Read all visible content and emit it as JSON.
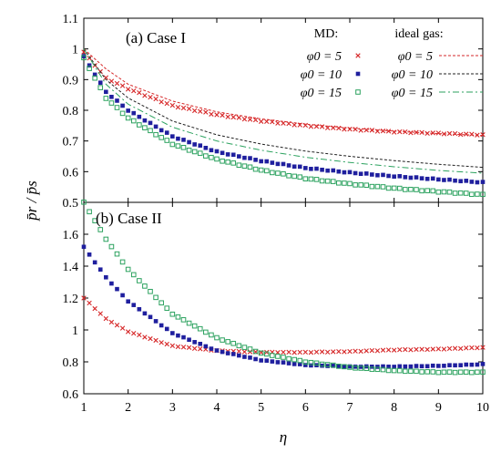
{
  "chart_data": [
    {
      "type": "scatter",
      "panel_title": "(a) Case I",
      "xlabel": "η",
      "ylabel": "p̄r / p̄s",
      "xlim": [
        1,
        10
      ],
      "ylim": [
        0.5,
        1.1
      ],
      "x_ticks": [
        1,
        2,
        3,
        4,
        5,
        6,
        7,
        8,
        9,
        10
      ],
      "y_ticks": [
        "0.5",
        "0.6",
        "0.7",
        "0.8",
        "0.9",
        "1",
        "1.1"
      ],
      "grid": false,
      "legend": {
        "placement": "top-right",
        "md_header": "MD:",
        "ideal_header": "ideal gas:"
      },
      "series": [
        {
          "name": "φ0 = 5",
          "group": "MD",
          "marker": "x",
          "color": "#d62728",
          "curve": [
            [
              1,
              0.99
            ],
            [
              1.5,
              0.905
            ],
            [
              2,
              0.87
            ],
            [
              3,
              0.815
            ],
            [
              4,
              0.785
            ],
            [
              5,
              0.765
            ],
            [
              6,
              0.75
            ],
            [
              7,
              0.738
            ],
            [
              8,
              0.73
            ],
            [
              9,
              0.725
            ],
            [
              10,
              0.72
            ]
          ]
        },
        {
          "name": "φ0 = 10",
          "group": "MD",
          "marker": "filled-square",
          "color": "#1f1f9e",
          "curve": [
            [
              1,
              0.975
            ],
            [
              1.5,
              0.86
            ],
            [
              2,
              0.8
            ],
            [
              3,
              0.715
            ],
            [
              4,
              0.665
            ],
            [
              5,
              0.635
            ],
            [
              6,
              0.612
            ],
            [
              7,
              0.597
            ],
            [
              8,
              0.585
            ],
            [
              9,
              0.575
            ],
            [
              10,
              0.565
            ]
          ]
        },
        {
          "name": "φ0 = 15",
          "group": "MD",
          "marker": "open-square",
          "color": "#2ca25f",
          "curve": [
            [
              1,
              0.97
            ],
            [
              1.5,
              0.84
            ],
            [
              2,
              0.775
            ],
            [
              3,
              0.69
            ],
            [
              4,
              0.64
            ],
            [
              5,
              0.605
            ],
            [
              6,
              0.578
            ],
            [
              7,
              0.56
            ],
            [
              8,
              0.546
            ],
            [
              9,
              0.535
            ],
            [
              10,
              0.525
            ]
          ]
        },
        {
          "name": "φ0 = 5",
          "group": "ideal gas",
          "line": "dashed",
          "color": "#d62728",
          "curve": [
            [
              1,
              1.0
            ],
            [
              1.5,
              0.935
            ],
            [
              2,
              0.885
            ],
            [
              3,
              0.83
            ],
            [
              4,
              0.795
            ],
            [
              5,
              0.772
            ],
            [
              6,
              0.755
            ],
            [
              7,
              0.742
            ],
            [
              8,
              0.732
            ],
            [
              9,
              0.724
            ],
            [
              10,
              0.718
            ]
          ]
        },
        {
          "name": "φ0 = 10",
          "group": "ideal gas",
          "line": "dashed",
          "color": "#222222",
          "curve": [
            [
              1,
              1.0
            ],
            [
              1.5,
              0.9
            ],
            [
              2,
              0.84
            ],
            [
              3,
              0.765
            ],
            [
              4,
              0.72
            ],
            [
              5,
              0.69
            ],
            [
              6,
              0.667
            ],
            [
              7,
              0.65
            ],
            [
              8,
              0.636
            ],
            [
              9,
              0.624
            ],
            [
              10,
              0.614
            ]
          ]
        },
        {
          "name": "φ0 = 15",
          "group": "ideal gas",
          "line": "dash-dot",
          "color": "#2ca25f",
          "curve": [
            [
              1,
              1.0
            ],
            [
              1.5,
              0.885
            ],
            [
              2,
              0.82
            ],
            [
              3,
              0.745
            ],
            [
              4,
              0.7
            ],
            [
              5,
              0.67
            ],
            [
              6,
              0.647
            ],
            [
              7,
              0.63
            ],
            [
              8,
              0.616
            ],
            [
              9,
              0.604
            ],
            [
              10,
              0.595
            ]
          ]
        }
      ]
    },
    {
      "type": "scatter",
      "panel_title": "(b) Case II",
      "xlabel": "η",
      "xlim": [
        1,
        10
      ],
      "ylim": [
        0.6,
        1.8
      ],
      "x_ticks": [
        1,
        2,
        3,
        4,
        5,
        6,
        7,
        8,
        9,
        10
      ],
      "y_ticks": [
        "0.6",
        "0.8",
        "1",
        "1.2",
        "1.4",
        "1.6"
      ],
      "grid": false,
      "series": [
        {
          "name": "φ0 = 5",
          "group": "MD",
          "marker": "x",
          "color": "#d62728",
          "curve": [
            [
              1,
              1.2
            ],
            [
              1.5,
              1.07
            ],
            [
              2,
              0.99
            ],
            [
              3,
              0.9
            ],
            [
              4,
              0.87
            ],
            [
              5,
              0.86
            ],
            [
              6,
              0.86
            ],
            [
              7,
              0.865
            ],
            [
              8,
              0.875
            ],
            [
              9,
              0.88
            ],
            [
              10,
              0.89
            ]
          ]
        },
        {
          "name": "φ0 = 10",
          "group": "MD",
          "marker": "filled-square",
          "color": "#1f1f9e",
          "curve": [
            [
              1,
              1.52
            ],
            [
              1.5,
              1.33
            ],
            [
              2,
              1.18
            ],
            [
              3,
              0.98
            ],
            [
              4,
              0.87
            ],
            [
              5,
              0.81
            ],
            [
              6,
              0.78
            ],
            [
              7,
              0.77
            ],
            [
              8,
              0.77
            ],
            [
              9,
              0.775
            ],
            [
              10,
              0.785
            ]
          ]
        },
        {
          "name": "φ0 = 15",
          "group": "MD",
          "marker": "open-square",
          "color": "#2ca25f",
          "curve": [
            [
              1,
              1.8
            ],
            [
              1.5,
              1.57
            ],
            [
              2,
              1.38
            ],
            [
              3,
              1.1
            ],
            [
              4,
              0.95
            ],
            [
              5,
              0.855
            ],
            [
              6,
              0.8
            ],
            [
              7,
              0.765
            ],
            [
              8,
              0.745
            ],
            [
              9,
              0.735
            ],
            [
              10,
              0.735
            ]
          ]
        }
      ]
    }
  ]
}
